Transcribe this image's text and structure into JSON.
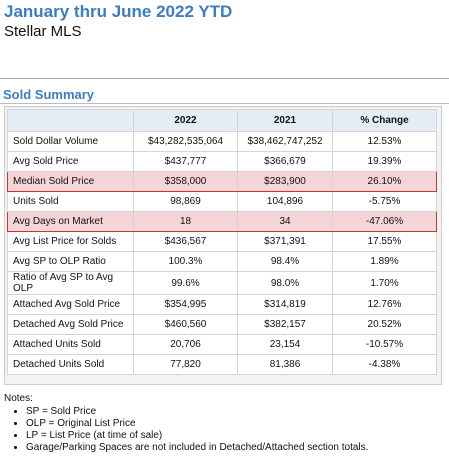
{
  "header": {
    "title": "January thru June 2022 YTD",
    "subtitle": "Stellar MLS"
  },
  "section_title": "Sold Summary",
  "table": {
    "columns": [
      "2022",
      "2021",
      "% Change"
    ],
    "rows": [
      [
        "Sold Dollar Volume",
        "$43,282,535,064",
        "$38,462,747,252",
        "12.53%"
      ],
      [
        "Avg Sold Price",
        "$437,777",
        "$366,679",
        "19.39%"
      ],
      [
        "Median Sold Price",
        "$358,000",
        "$283,900",
        "26.10%"
      ],
      [
        "Units Sold",
        "98,869",
        "104,896",
        "-5.75%"
      ],
      [
        "Avg Days on Market",
        "18",
        "34",
        "-47.06%"
      ],
      [
        "Avg List Price for Solds",
        "$436,567",
        "$371,391",
        "17.55%"
      ],
      [
        "Avg SP to OLP Ratio",
        "100.3%",
        "98.4%",
        "1.89%"
      ],
      [
        "Ratio of Avg SP to Avg OLP",
        "99.6%",
        "98.0%",
        "1.70%"
      ],
      [
        "Attached Avg Sold Price",
        "$354,995",
        "$314,819",
        "12.76%"
      ],
      [
        "Detached Avg Sold Price",
        "$460,560",
        "$382,157",
        "20.52%"
      ],
      [
        "Attached Units Sold",
        "20,706",
        "23,154",
        "-10.57%"
      ],
      [
        "Detached Units Sold",
        "77,820",
        "81,386",
        "-4.38%"
      ]
    ],
    "highlighted_rows": [
      2,
      4
    ]
  },
  "notes": {
    "title": "Notes:",
    "items": [
      "SP = Sold Price",
      "OLP = Original List Price",
      "LP = List Price (at time of sale)",
      "Garage/Parking Spaces are not included in Detached/Attached section totals."
    ]
  }
}
